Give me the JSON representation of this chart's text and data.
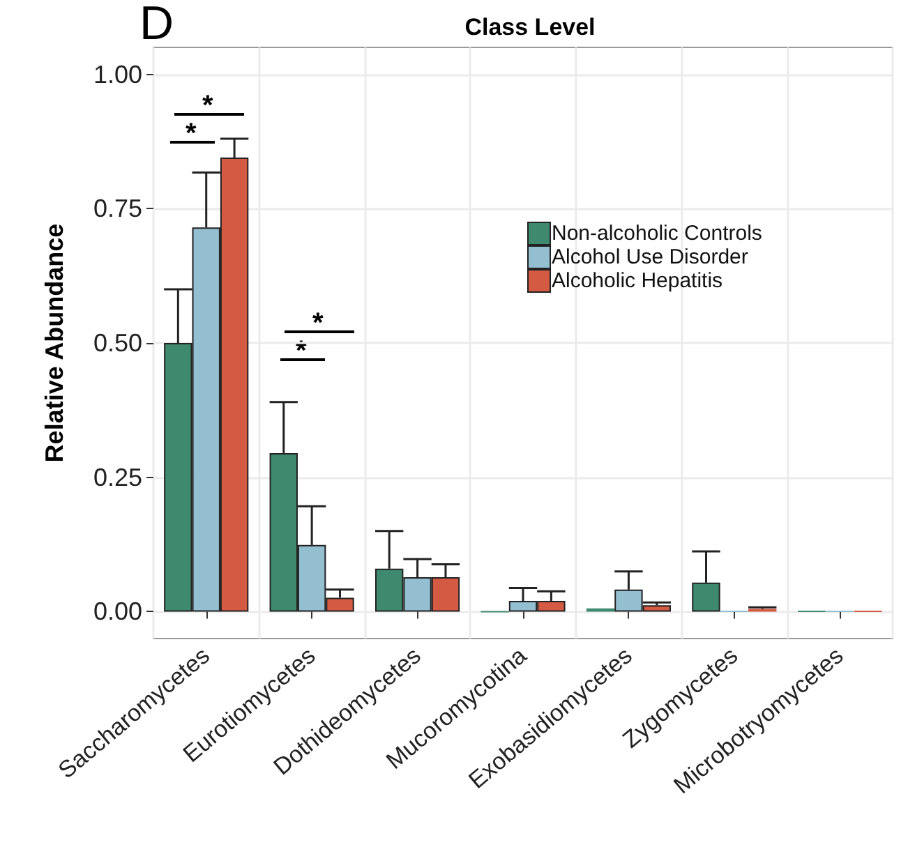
{
  "chart_data": {
    "type": "bar",
    "title": "Class Level",
    "ylabel": "Relative Abundance",
    "categories": [
      "Saccharomycetes",
      "Eurotiomycetes",
      "Dothideomycetes",
      "Mucoromycotina",
      "Exobasidiomycetes",
      "Zygomycetes",
      "Microbotryomycetes"
    ],
    "series": [
      {
        "name": "Non-alcoholic Controls",
        "color": "#3f8a6e",
        "values": [
          0.5,
          0.295,
          0.08,
          0.0,
          0.006,
          0.054,
          0.001
        ],
        "errors": [
          [
            0.5,
            0.6
          ],
          [
            0.295,
            0.39
          ],
          [
            0.08,
            0.15
          ],
          [
            0.0,
            0.0
          ],
          [
            0.006,
            0.006
          ],
          [
            0.054,
            0.112
          ],
          [
            0.001,
            0.001
          ]
        ]
      },
      {
        "name": "Alcohol Use Disorder",
        "color": "#94bfd0",
        "values": [
          0.715,
          0.124,
          0.064,
          0.02,
          0.041,
          0.001,
          0.001
        ],
        "errors": [
          [
            0.715,
            0.817
          ],
          [
            0.124,
            0.196
          ],
          [
            0.064,
            0.098
          ],
          [
            0.02,
            0.044
          ],
          [
            0.041,
            0.075
          ],
          [
            0.001,
            0.001
          ],
          [
            0.001,
            0.001
          ]
        ]
      },
      {
        "name": "Alcoholic Hepatitis",
        "color": "#d45a43",
        "values": [
          0.845,
          0.026,
          0.064,
          0.02,
          0.012,
          0.005,
          0.001
        ],
        "errors": [
          [
            0.845,
            0.88
          ],
          [
            0.026,
            0.041
          ],
          [
            0.064,
            0.088
          ],
          [
            0.02,
            0.038
          ],
          [
            0.012,
            0.017
          ],
          [
            0.005,
            0.008
          ],
          [
            0.001,
            0.001
          ]
        ]
      }
    ],
    "ylim": [
      -0.05,
      1.05
    ],
    "yticks": [
      {
        "value": 0,
        "label": "0.00"
      },
      {
        "value": 0.25,
        "label": "0.25"
      },
      {
        "value": 0.5,
        "label": "0.50"
      },
      {
        "value": 0.75,
        "label": "0.75"
      },
      {
        "value": 1,
        "label": "1.00"
      }
    ],
    "grid": true,
    "legend": "top right",
    "annotations": [
      "D",
      "*",
      "*",
      "*",
      "*"
    ]
  }
}
